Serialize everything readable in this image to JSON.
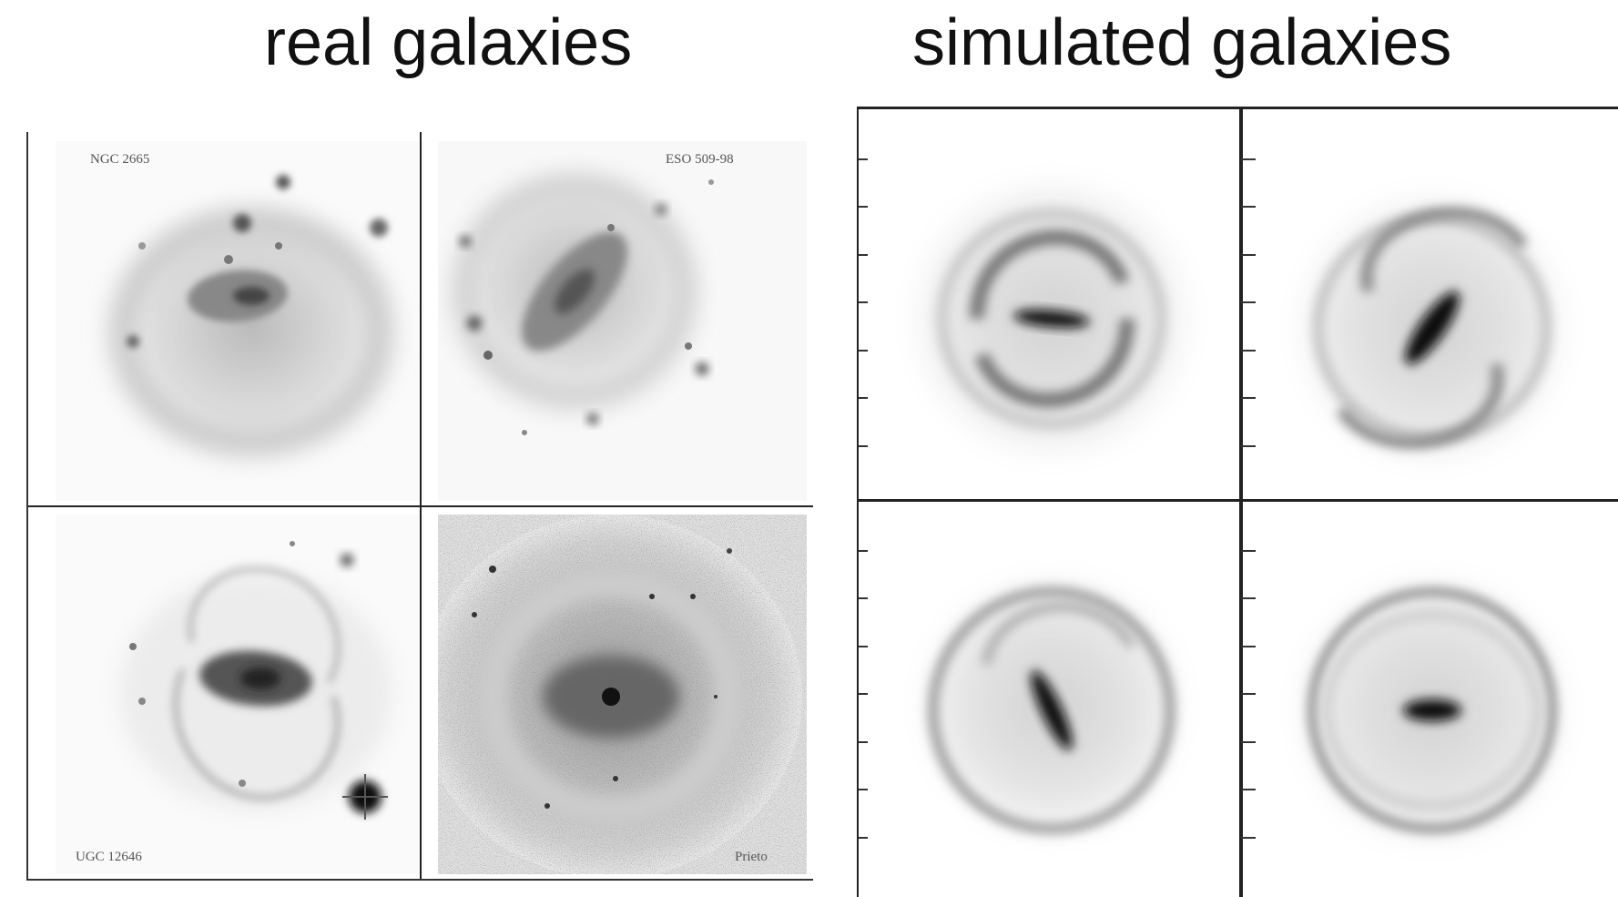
{
  "headings": {
    "real": "real galaxies",
    "simulated": "simulated galaxies"
  },
  "real_panels": [
    {
      "label": "NGC 2665"
    },
    {
      "label": "ESO 509-98"
    },
    {
      "label": "UGC 12646"
    },
    {
      "label": "Prieto"
    }
  ],
  "colors": {
    "background": "#ffffff",
    "ink": "#111111",
    "divider": "#222222"
  }
}
